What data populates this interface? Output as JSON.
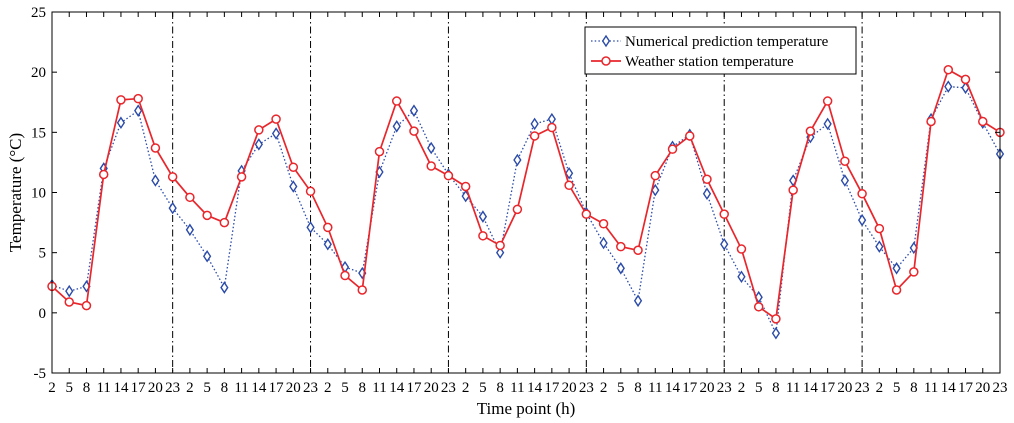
{
  "chart_data": {
    "type": "line",
    "title": "",
    "xlabel": "Time point (h)",
    "ylabel": "Temperature (°C)",
    "ylim": [
      -5,
      25
    ],
    "yticks": [
      "-5",
      "0",
      "5",
      "10",
      "15",
      "20",
      "25"
    ],
    "x_tick_labels": [
      "2",
      "5",
      "8",
      "11",
      "14",
      "17",
      "20",
      "23",
      "2",
      "5",
      "8",
      "11",
      "14",
      "17",
      "20",
      "23",
      "2",
      "5",
      "8",
      "11",
      "14",
      "17",
      "20",
      "23",
      "2",
      "5",
      "8",
      "11",
      "14",
      "17",
      "20",
      "23",
      "2",
      "5",
      "8",
      "11",
      "14",
      "17",
      "20",
      "23",
      "2",
      "5",
      "8",
      "11",
      "14",
      "17",
      "20",
      "23",
      "2",
      "5",
      "8",
      "11",
      "14",
      "17",
      "20",
      "23"
    ],
    "day_boundary_indices": [
      7,
      15,
      23,
      31,
      39,
      47
    ],
    "legend_position": "top-right",
    "grid": false,
    "series": [
      {
        "name": "Numerical prediction temperature",
        "color": "#2b4ba8",
        "line_style": "dotted",
        "marker": "diamond",
        "values": [
          2.3,
          1.8,
          2.2,
          12.0,
          15.8,
          16.8,
          11.0,
          8.7,
          6.9,
          4.7,
          2.1,
          11.8,
          14.0,
          14.9,
          10.5,
          7.1,
          5.7,
          3.8,
          3.3,
          11.7,
          15.5,
          16.8,
          13.7,
          11.5,
          9.7,
          8.0,
          5.0,
          12.7,
          15.7,
          16.1,
          11.6,
          8.3,
          5.8,
          3.7,
          1.0,
          10.2,
          13.8,
          14.8,
          9.9,
          5.7,
          3.0,
          1.3,
          -1.7,
          11.0,
          14.6,
          15.7,
          11.0,
          7.7,
          5.5,
          3.7,
          5.4,
          16.1,
          18.8,
          18.7,
          15.8,
          13.2
        ]
      },
      {
        "name": "Weather station temperature",
        "color": "#e8262b",
        "line_style": "solid",
        "marker": "circle",
        "values": [
          2.2,
          0.9,
          0.6,
          11.5,
          17.7,
          17.8,
          13.7,
          11.3,
          9.6,
          8.1,
          7.5,
          11.3,
          15.2,
          16.1,
          12.1,
          10.1,
          7.1,
          3.1,
          1.9,
          13.4,
          17.6,
          15.1,
          12.2,
          11.4,
          10.5,
          6.4,
          5.6,
          8.6,
          14.7,
          15.4,
          10.6,
          8.2,
          7.4,
          5.5,
          5.2,
          11.4,
          13.6,
          14.7,
          11.1,
          8.2,
          5.3,
          0.5,
          -0.5,
          10.2,
          15.1,
          17.6,
          12.6,
          9.9,
          7.0,
          1.9,
          3.4,
          15.9,
          20.2,
          19.4,
          15.9,
          15.0
        ]
      }
    ]
  }
}
